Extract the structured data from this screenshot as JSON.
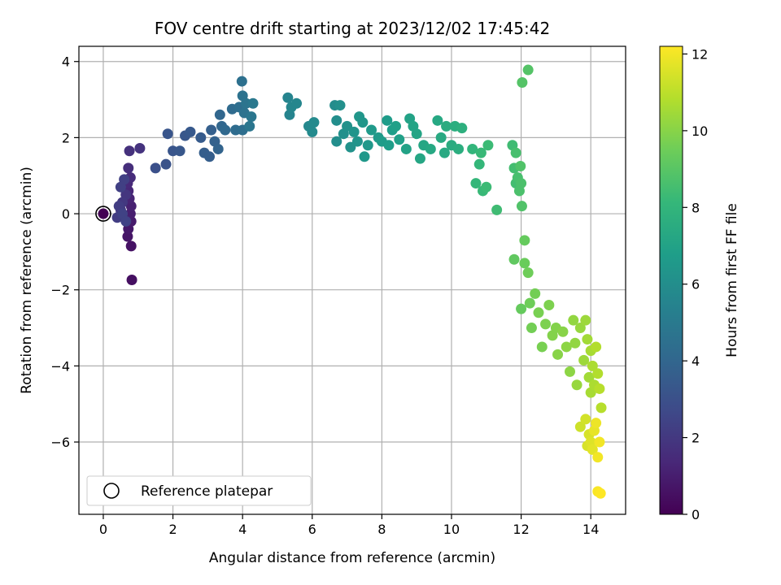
{
  "chart_data": {
    "type": "scatter",
    "title": "FOV centre drift starting at 2023/12/02 17:45:42",
    "xlabel": "Angular distance from reference (arcmin)",
    "ylabel": "Rotation from reference (arcmin)",
    "colorbar_label": "Hours from first FF file",
    "xlim": [
      -0.7,
      15.0
    ],
    "ylim": [
      -7.9,
      4.4
    ],
    "colorbar_range": [
      0,
      12.2
    ],
    "x_ticks": [
      0,
      2,
      4,
      6,
      8,
      10,
      12,
      14
    ],
    "y_ticks": [
      -6,
      -4,
      -2,
      0,
      2,
      4
    ],
    "colorbar_ticks": [
      0,
      2,
      4,
      6,
      8,
      10,
      12
    ],
    "x_tick_labels": [
      "0",
      "2",
      "4",
      "6",
      "8",
      "10",
      "12",
      "14"
    ],
    "y_tick_labels": [
      "−6",
      "−4",
      "−2",
      "0",
      "2",
      "4"
    ],
    "colorbar_tick_labels": [
      "0",
      "2",
      "4",
      "6",
      "8",
      "10",
      "12"
    ],
    "grid": true,
    "colormap": "viridis",
    "legend": {
      "placement": "lower-left",
      "entries": [
        "Reference platepar"
      ]
    },
    "reference_point": {
      "x": 0.0,
      "y": 0.0,
      "label": "Reference platepar"
    },
    "points": [
      [
        0.82,
        -1.74,
        0.5
      ],
      [
        0.8,
        -0.85,
        0.6
      ],
      [
        0.7,
        -0.6,
        0.7
      ],
      [
        0.72,
        -0.4,
        0.8
      ],
      [
        0.8,
        -0.2,
        0.9
      ],
      [
        0.78,
        0.0,
        1.0
      ],
      [
        0.8,
        0.2,
        1.1
      ],
      [
        0.75,
        0.4,
        1.2
      ],
      [
        0.72,
        0.6,
        1.3
      ],
      [
        0.7,
        0.8,
        1.4
      ],
      [
        0.78,
        0.95,
        1.5
      ],
      [
        0.72,
        1.2,
        1.6
      ],
      [
        0.75,
        1.65,
        1.7
      ],
      [
        1.05,
        1.72,
        1.8
      ],
      [
        0.65,
        0.5,
        1.9
      ],
      [
        0.55,
        0.3,
        2.0
      ],
      [
        0.5,
        0.1,
        2.1
      ],
      [
        0.45,
        0.2,
        2.2
      ],
      [
        0.4,
        -0.1,
        2.2
      ],
      [
        0.5,
        0.7,
        2.3
      ],
      [
        0.6,
        0.9,
        2.3
      ],
      [
        0.55,
        0.0,
        2.4
      ],
      [
        0.65,
        -0.2,
        2.4
      ],
      [
        1.5,
        1.2,
        3.0
      ],
      [
        1.8,
        1.3,
        3.1
      ],
      [
        1.85,
        2.1,
        3.2
      ],
      [
        2.0,
        1.65,
        3.2
      ],
      [
        2.2,
        1.65,
        3.3
      ],
      [
        2.35,
        2.05,
        3.3
      ],
      [
        2.5,
        2.15,
        3.4
      ],
      [
        2.8,
        2.0,
        3.5
      ],
      [
        2.9,
        1.6,
        3.6
      ],
      [
        3.05,
        1.5,
        3.6
      ],
      [
        3.1,
        2.2,
        3.7
      ],
      [
        3.2,
        1.9,
        3.8
      ],
      [
        3.3,
        1.7,
        3.9
      ],
      [
        3.35,
        2.6,
        4.0
      ],
      [
        3.4,
        2.3,
        4.0
      ],
      [
        3.5,
        2.2,
        4.1
      ],
      [
        3.7,
        2.75,
        4.2
      ],
      [
        3.8,
        2.2,
        4.3
      ],
      [
        3.9,
        2.8,
        4.4
      ],
      [
        4.0,
        2.2,
        4.4
      ],
      [
        3.98,
        3.48,
        4.5
      ],
      [
        4.0,
        3.1,
        4.6
      ],
      [
        4.05,
        2.65,
        4.6
      ],
      [
        4.1,
        2.9,
        4.7
      ],
      [
        4.2,
        2.3,
        4.8
      ],
      [
        4.25,
        2.55,
        4.8
      ],
      [
        4.3,
        2.9,
        4.9
      ],
      [
        5.3,
        3.05,
        5.5
      ],
      [
        5.35,
        2.6,
        5.5
      ],
      [
        5.4,
        2.8,
        5.6
      ],
      [
        5.55,
        2.9,
        5.6
      ],
      [
        5.9,
        2.3,
        5.7
      ],
      [
        6.0,
        2.15,
        5.8
      ],
      [
        6.05,
        2.4,
        5.8
      ],
      [
        6.65,
        2.85,
        5.9
      ],
      [
        6.7,
        2.45,
        6.0
      ],
      [
        6.7,
        1.9,
        6.0
      ],
      [
        6.8,
        2.85,
        6.1
      ],
      [
        6.9,
        2.1,
        6.1
      ],
      [
        7.0,
        2.3,
        6.2
      ],
      [
        7.1,
        1.75,
        6.2
      ],
      [
        7.2,
        2.15,
        6.3
      ],
      [
        7.3,
        1.9,
        6.3
      ],
      [
        7.35,
        2.55,
        6.4
      ],
      [
        7.45,
        2.4,
        6.4
      ],
      [
        7.5,
        1.5,
        6.5
      ],
      [
        7.6,
        1.8,
        6.5
      ],
      [
        7.7,
        2.2,
        6.6
      ],
      [
        7.9,
        2.0,
        6.6
      ],
      [
        8.0,
        1.9,
        6.7
      ],
      [
        8.15,
        2.45,
        6.7
      ],
      [
        8.2,
        1.8,
        6.8
      ],
      [
        8.3,
        2.2,
        6.8
      ],
      [
        8.4,
        2.3,
        6.9
      ],
      [
        8.5,
        1.95,
        6.9
      ],
      [
        8.7,
        1.7,
        7.0
      ],
      [
        8.8,
        2.5,
        7.0
      ],
      [
        8.9,
        2.3,
        7.1
      ],
      [
        9.0,
        2.1,
        7.1
      ],
      [
        9.1,
        1.45,
        7.2
      ],
      [
        9.2,
        1.8,
        7.2
      ],
      [
        9.4,
        1.7,
        7.3
      ],
      [
        9.6,
        2.45,
        7.3
      ],
      [
        9.7,
        2.0,
        7.4
      ],
      [
        9.8,
        1.6,
        7.4
      ],
      [
        9.85,
        2.3,
        7.5
      ],
      [
        10.0,
        1.8,
        7.5
      ],
      [
        10.1,
        2.3,
        7.6
      ],
      [
        10.2,
        1.7,
        7.6
      ],
      [
        10.3,
        2.25,
        7.7
      ],
      [
        10.6,
        1.7,
        8.0
      ],
      [
        10.7,
        0.8,
        8.1
      ],
      [
        10.8,
        1.3,
        8.1
      ],
      [
        10.85,
        1.6,
        8.2
      ],
      [
        10.9,
        0.6,
        8.2
      ],
      [
        11.0,
        0.7,
        8.3
      ],
      [
        11.05,
        1.8,
        8.3
      ],
      [
        11.3,
        0.1,
        8.4
      ],
      [
        11.75,
        1.8,
        8.4
      ],
      [
        11.8,
        1.2,
        8.5
      ],
      [
        11.85,
        0.8,
        8.5
      ],
      [
        11.85,
        1.6,
        8.6
      ],
      [
        11.9,
        0.95,
        8.6
      ],
      [
        11.95,
        0.6,
        8.7
      ],
      [
        12.0,
        0.8,
        8.7
      ],
      [
        11.98,
        1.25,
        8.8
      ],
      [
        12.02,
        0.2,
        8.8
      ],
      [
        12.03,
        3.45,
        8.9
      ],
      [
        12.2,
        3.78,
        8.9
      ],
      [
        11.8,
        -1.2,
        9.2
      ],
      [
        12.0,
        -2.5,
        9.3
      ],
      [
        12.1,
        -0.7,
        9.3
      ],
      [
        12.1,
        -1.3,
        9.4
      ],
      [
        12.2,
        -1.55,
        9.5
      ],
      [
        12.25,
        -2.35,
        9.5
      ],
      [
        12.3,
        -3.0,
        9.6
      ],
      [
        12.4,
        -2.1,
        9.6
      ],
      [
        12.5,
        -2.6,
        9.7
      ],
      [
        12.6,
        -3.5,
        9.7
      ],
      [
        12.7,
        -2.9,
        9.8
      ],
      [
        12.8,
        -2.4,
        9.8
      ],
      [
        12.9,
        -3.2,
        9.9
      ],
      [
        13.0,
        -3.0,
        9.9
      ],
      [
        13.05,
        -3.7,
        10.0
      ],
      [
        13.2,
        -3.1,
        10.0
      ],
      [
        13.3,
        -3.5,
        10.1
      ],
      [
        13.4,
        -4.15,
        10.1
      ],
      [
        13.5,
        -2.8,
        10.2
      ],
      [
        13.55,
        -3.4,
        10.2
      ],
      [
        13.6,
        -4.5,
        10.3
      ],
      [
        13.7,
        -3.0,
        10.3
      ],
      [
        13.8,
        -3.85,
        10.4
      ],
      [
        13.85,
        -2.8,
        10.4
      ],
      [
        13.9,
        -3.3,
        10.5
      ],
      [
        13.95,
        -4.3,
        10.5
      ],
      [
        14.0,
        -3.6,
        10.6
      ],
      [
        14.0,
        -4.7,
        10.6
      ],
      [
        14.05,
        -4.0,
        10.7
      ],
      [
        14.1,
        -4.5,
        10.7
      ],
      [
        14.15,
        -3.5,
        10.8
      ],
      [
        14.2,
        -4.2,
        10.8
      ],
      [
        14.25,
        -4.6,
        10.9
      ],
      [
        14.3,
        -5.1,
        10.9
      ],
      [
        13.7,
        -5.6,
        11.3
      ],
      [
        13.85,
        -5.4,
        11.4
      ],
      [
        13.9,
        -6.1,
        11.5
      ],
      [
        13.95,
        -5.8,
        11.5
      ],
      [
        14.0,
        -6.0,
        11.6
      ],
      [
        14.05,
        -6.2,
        11.7
      ],
      [
        14.1,
        -5.7,
        11.8
      ],
      [
        14.15,
        -5.5,
        11.9
      ],
      [
        14.2,
        -6.4,
        12.0
      ],
      [
        14.25,
        -6.0,
        12.0
      ],
      [
        14.2,
        -7.3,
        12.1
      ],
      [
        14.28,
        -7.35,
        12.2
      ]
    ]
  }
}
